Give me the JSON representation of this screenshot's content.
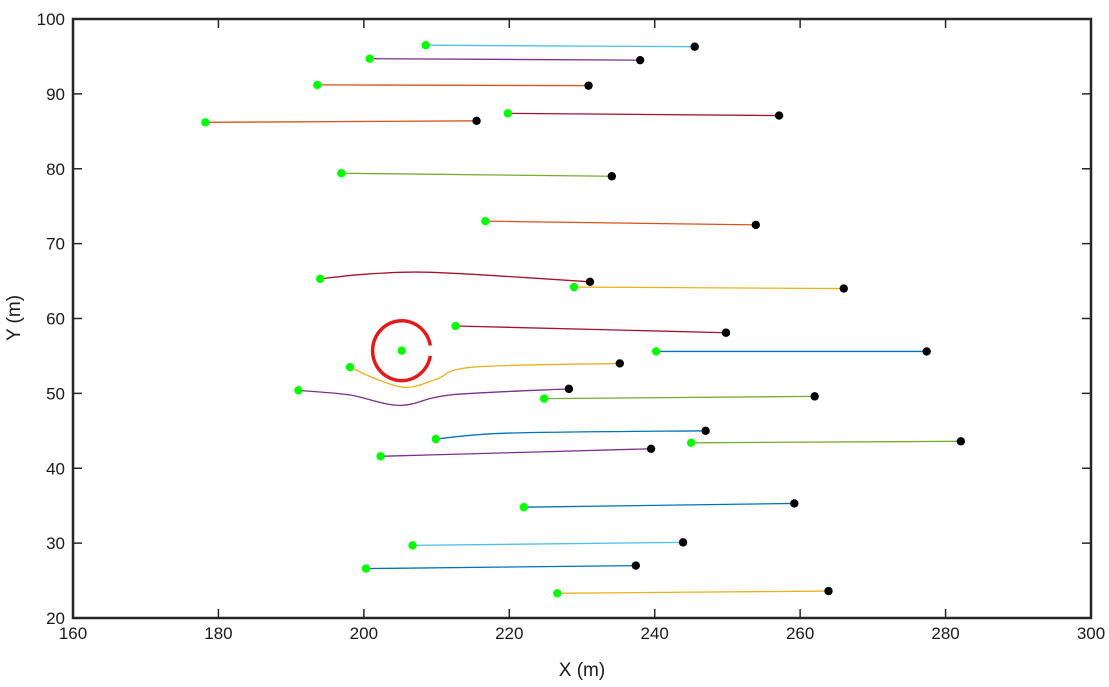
{
  "chart_data": {
    "type": "line",
    "title": "",
    "xlabel": "X (m)",
    "ylabel": "Y (m)",
    "xlim": [
      160,
      300
    ],
    "ylim": [
      20,
      100
    ],
    "xticks": [
      160,
      180,
      200,
      220,
      240,
      260,
      280,
      300
    ],
    "yticks": [
      20,
      30,
      40,
      50,
      60,
      70,
      80,
      90,
      100
    ],
    "grid": false,
    "legend": null,
    "start_marker_color": "#00ff00",
    "end_marker_color": "#000000",
    "series": [
      {
        "color": "#4dbeee",
        "x": [
          208.5,
          245.5
        ],
        "y": [
          96.5,
          96.3
        ]
      },
      {
        "color": "#7e2f8e",
        "x": [
          200.8,
          238.0
        ],
        "y": [
          94.7,
          94.5
        ]
      },
      {
        "color": "#d95319",
        "x": [
          193.6,
          230.9
        ],
        "y": [
          91.2,
          91.1
        ]
      },
      {
        "color": "#d95319",
        "x": [
          178.2,
          215.5
        ],
        "y": [
          86.2,
          86.4
        ]
      },
      {
        "color": "#a2142f",
        "x": [
          219.8,
          257.1
        ],
        "y": [
          87.4,
          87.1
        ]
      },
      {
        "color": "#77ac30",
        "x": [
          196.9,
          234.1
        ],
        "y": [
          79.4,
          79.0
        ]
      },
      {
        "color": "#d95319",
        "x": [
          216.7,
          253.9
        ],
        "y": [
          73.0,
          72.5
        ]
      },
      {
        "color": "#a2142f",
        "x": [
          194.0,
          200.0,
          207.0,
          215.0,
          231.1
        ],
        "y": [
          65.3,
          65.9,
          66.2,
          65.9,
          64.9
        ]
      },
      {
        "color": "#edb120",
        "x": [
          228.9,
          266.0
        ],
        "y": [
          64.2,
          64.0
        ]
      },
      {
        "color": "#a2142f",
        "x": [
          212.6,
          249.8
        ],
        "y": [
          59.0,
          58.1
        ]
      },
      {
        "color": "#0072bd",
        "x": [
          240.2,
          277.4
        ],
        "y": [
          55.6,
          55.6
        ]
      },
      {
        "color": "#edb120",
        "x": [
          198.1,
          202.0,
          206.0,
          210.0,
          215.0,
          235.2
        ],
        "y": [
          53.5,
          51.8,
          50.8,
          51.9,
          53.5,
          54.0
        ]
      },
      {
        "color": "#7e2f8e",
        "x": [
          191.0,
          198.0,
          205.0,
          212.0,
          228.2
        ],
        "y": [
          50.4,
          49.8,
          48.4,
          49.8,
          50.6
        ]
      },
      {
        "color": "#77ac30",
        "x": [
          224.8,
          262.0
        ],
        "y": [
          49.3,
          49.6
        ]
      },
      {
        "color": "#0072bd",
        "x": [
          209.9,
          220.0,
          247.0
        ],
        "y": [
          43.9,
          44.7,
          45.0
        ]
      },
      {
        "color": "#77ac30",
        "x": [
          245.0,
          282.1
        ],
        "y": [
          43.4,
          43.6
        ]
      },
      {
        "color": "#7e2f8e",
        "x": [
          202.3,
          210.0,
          239.5
        ],
        "y": [
          41.6,
          41.8,
          42.6
        ]
      },
      {
        "color": "#0072bd",
        "x": [
          222.0,
          259.2
        ],
        "y": [
          34.8,
          35.3
        ]
      },
      {
        "color": "#4dbeee",
        "x": [
          206.7,
          243.9
        ],
        "y": [
          29.7,
          30.1
        ]
      },
      {
        "color": "#0072bd",
        "x": [
          200.3,
          237.4
        ],
        "y": [
          26.6,
          27.0
        ]
      },
      {
        "color": "#edb120",
        "x": [
          226.6,
          263.9
        ],
        "y": [
          23.3,
          23.6
        ]
      }
    ],
    "obstacle": {
      "type": "circle",
      "color": "#e31a1c",
      "center": [
        205.2,
        55.7
      ],
      "radius": 4.0,
      "gap_deg": [
        -10,
        10
      ]
    }
  }
}
